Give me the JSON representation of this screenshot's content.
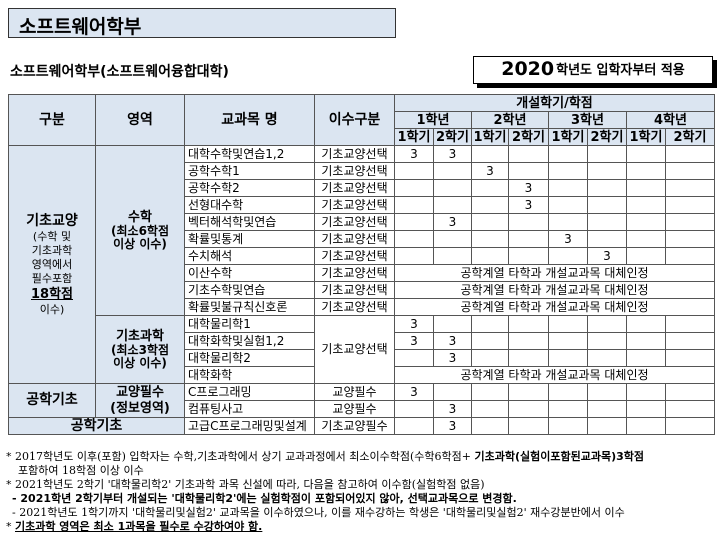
{
  "page_title": "소프트웨어학부",
  "subtitle": "소프트웨어학부(소프트웨어융합대학)",
  "year_notice": {
    "year": "2020",
    "text": "학년도 입학자부터 적용"
  },
  "table": {
    "headers": {
      "category": "구분",
      "area": "영역",
      "course_name": "교과목 명",
      "completion_type": "이수구분",
      "semester_group": "개설학기/학점",
      "years": [
        "1학년",
        "2학년",
        "3학년",
        "4학년"
      ],
      "semesters": [
        "1학기",
        "2학기",
        "1학기",
        "2학기",
        "1학기",
        "2학기",
        "1학기",
        "2학기"
      ]
    },
    "groups": {
      "basic_liberal": {
        "title": "기초교양",
        "desc1": "(수학 및",
        "desc2": "기초과학",
        "desc3": "영역에서",
        "desc4": "필수포함",
        "credits": "18학점",
        "desc5": "이수)"
      },
      "math": {
        "title": "수학",
        "sub1": "(최소6학점",
        "sub2": "이상 이수)"
      },
      "science": {
        "title": "기초과학",
        "sub1": "(최소3학점",
        "sub2": "이상 이수)"
      },
      "eng_basic": {
        "title": "공학기초"
      },
      "liberal_req": {
        "title": "교양필수",
        "sub": "(정보영역)"
      },
      "eng_basic2": {
        "title": "공학기초"
      }
    },
    "replacement_text": "공학계열 타학과 개설교과목 대체인정",
    "shared_type": "기초교양선택",
    "rows": [
      {
        "name": "대학수학및연습1,2",
        "type": "기초교양선택",
        "cells": [
          "3",
          "3",
          "",
          "",
          "",
          "",
          "",
          ""
        ]
      },
      {
        "name": "공학수학1",
        "type": "기초교양선택",
        "cells": [
          "",
          "",
          "3",
          "",
          "",
          "",
          "",
          ""
        ]
      },
      {
        "name": "공학수학2",
        "type": "기초교양선택",
        "cells": [
          "",
          "",
          "",
          "3",
          "",
          "",
          "",
          ""
        ]
      },
      {
        "name": "선형대수학",
        "type": "기초교양선택",
        "cells": [
          "",
          "",
          "",
          "3",
          "",
          "",
          "",
          ""
        ]
      },
      {
        "name": "벡터해석학및연습",
        "type": "기초교양선택",
        "cells": [
          "",
          "3",
          "",
          "",
          "",
          "",
          "",
          ""
        ]
      },
      {
        "name": "확률및통계",
        "type": "기초교양선택",
        "cells": [
          "",
          "",
          "",
          "",
          "3",
          "",
          "",
          ""
        ]
      },
      {
        "name": "수치해석",
        "type": "기초교양선택",
        "cells": [
          "",
          "",
          "",
          "",
          "",
          "3",
          "",
          ""
        ]
      },
      {
        "name": "이산수학",
        "type": "기초교양선택"
      },
      {
        "name": "기초수학및연습",
        "type": "기초교양선택"
      },
      {
        "name": "확률및불규칙신호론",
        "type": "기초교양선택"
      },
      {
        "name": "대학물리학1",
        "cells": [
          "3",
          "",
          "",
          "",
          "",
          "",
          "",
          ""
        ]
      },
      {
        "name": "대학화학및실험1,2",
        "cells": [
          "3",
          "3",
          "",
          "",
          "",
          "",
          "",
          ""
        ]
      },
      {
        "name": "대학물리학2",
        "cells": [
          "",
          "3",
          "",
          "",
          "",
          "",
          "",
          ""
        ]
      },
      {
        "name": "대학화학"
      },
      {
        "name": "C프로그래밍",
        "type": "교양필수",
        "cells": [
          "3",
          "",
          "",
          "",
          "",
          "",
          "",
          ""
        ]
      },
      {
        "name": "컴퓨팅사고",
        "type": "교양필수",
        "cells": [
          "",
          "3",
          "",
          "",
          "",
          "",
          "",
          ""
        ]
      },
      {
        "name": "고급C프로그래밍및설계",
        "type": "기초교양필수",
        "cells": [
          "",
          "3",
          "",
          "",
          "",
          "",
          "",
          ""
        ]
      }
    ]
  },
  "notes": {
    "n1a": "2017학년도 이후(포함) 입학자는 수학,기초과학에서 상기 교과과정에서 최소이수학점(수학6학점+ ",
    "n1b": "기초과학(실험이포함된교과목)3학점",
    "n1c": "포함하여 18학점 이상 이수",
    "n2a": "2021학년도 2학기 '대학물리학2' 기초과학 과목 신설에 따라, 다음을 참고하여 이수함(실험학점 없음)",
    "n2b": "- 2021학년 2학기부터 개설되는 '대학물리학2'에는 실험학점이 포함되어있지 않아, 선택교과목으로 변경함.",
    "n2c": "- 2021학년도 1학기까지 '대학물리및실험2' 교과목을 이수하였으나, 이를 재수강하는 학생은 '대학물리및실험2' 재수강분반에서 이수",
    "n3": "기초과학 영역은 최소 1과목을 필수로 수강하여야 함.",
    "bullet": "*"
  }
}
